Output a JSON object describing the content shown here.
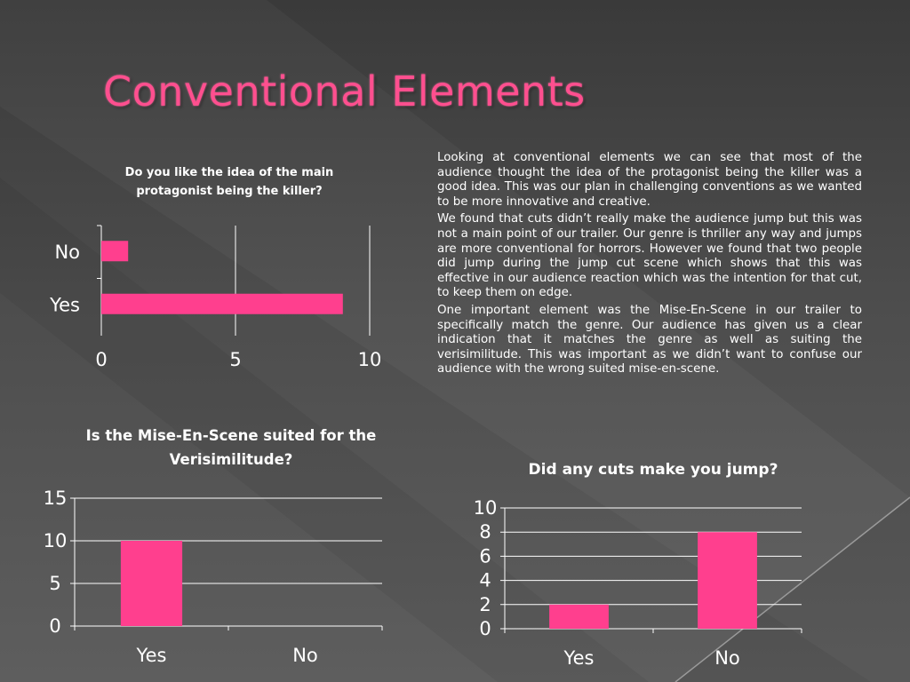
{
  "slide": {
    "title": "Conventional Elements",
    "paragraphs": [
      "Looking at conventional elements we can see that most of the audience thought the idea of the protagonist being the killer was a good idea. This was our plan in challenging conventions as we wanted to be more innovative and creative.",
      "We found that cuts didn’t really make the audience jump but this was not a main point of our trailer. Our genre is thriller any way and jumps are more conventional for horrors. However we found that two people did jump during the jump cut scene which shows that this was effective in our audience reaction which was the intention for that cut, to keep them on edge.",
      "One important element was the Mise-En-Scene in our trailer to specifically match the genre. Our audience has given us a clear indication that it matches the genre as well as suiting the verisimilitude. This was important as we didn’t want to confuse our audience with the wrong suited mise-en-scene."
    ]
  },
  "colors": {
    "accent": "#ff3f8e",
    "title": "#ff4f8f",
    "gridline": "#ffffff"
  },
  "chart_data": [
    {
      "id": "protagonist",
      "type": "bar",
      "orientation": "horizontal",
      "title": "Do you like the idea of the main protagonist being the killer?",
      "categories": [
        "No",
        "Yes"
      ],
      "values": [
        1,
        9
      ],
      "xlim": [
        0,
        10
      ],
      "ticks": [
        0,
        5,
        10
      ],
      "grid": true,
      "legend": "none"
    },
    {
      "id": "mise",
      "type": "bar",
      "orientation": "vertical",
      "title": "Is the Mise-En-Scene suited for the Verisimilitude?",
      "categories": [
        "Yes",
        "No"
      ],
      "values": [
        10,
        0
      ],
      "ylim": [
        0,
        15
      ],
      "ticks": [
        0,
        5,
        10,
        15
      ],
      "grid": true,
      "legend": "none"
    },
    {
      "id": "cuts",
      "type": "bar",
      "orientation": "vertical",
      "title": "Did any cuts make you jump?",
      "categories": [
        "Yes",
        "No"
      ],
      "values": [
        2,
        8
      ],
      "ylim": [
        0,
        10
      ],
      "ticks": [
        0,
        2,
        4,
        6,
        8,
        10
      ],
      "grid": true,
      "legend": "none"
    }
  ]
}
